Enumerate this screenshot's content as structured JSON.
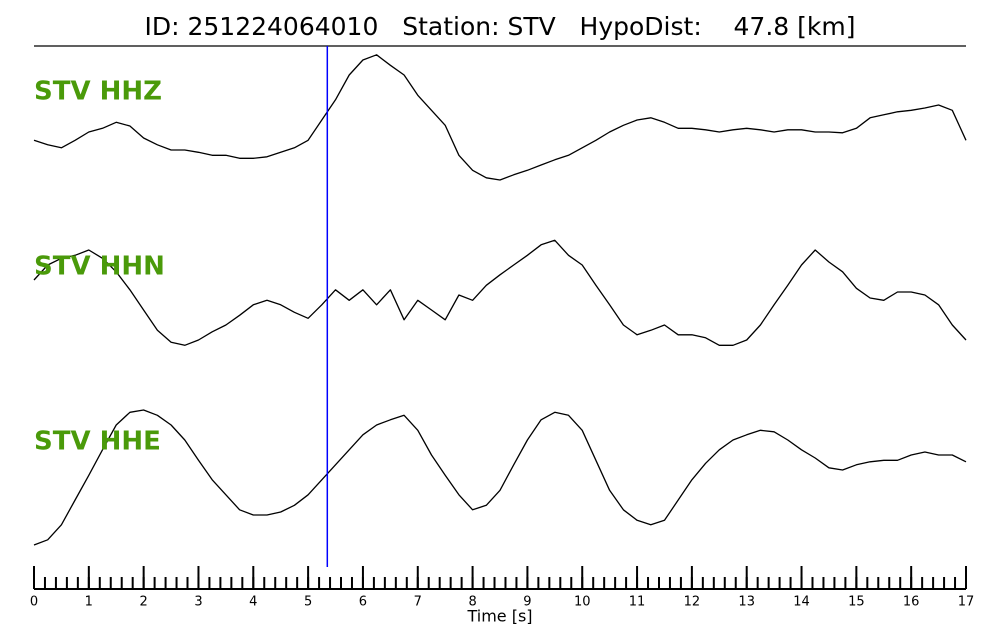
{
  "chart_data": {
    "type": "line",
    "title": "ID: 251224064010   Station: STV   HypoDist:    47.8 [km]",
    "xlabel": "Time [s]",
    "xlim": [
      0,
      17
    ],
    "xticks": [
      0,
      1,
      2,
      3,
      4,
      5,
      6,
      7,
      8,
      9,
      10,
      11,
      12,
      13,
      14,
      15,
      16,
      17
    ],
    "minor_xtick_step": 0.2,
    "ylim": [
      -1,
      1
    ],
    "label_color": "#4a9a0a",
    "vlines": [
      {
        "x": 5.35,
        "color": "#0000ff"
      }
    ],
    "x": [
      0,
      0.25,
      0.5,
      0.75,
      1,
      1.25,
      1.5,
      1.75,
      2,
      2.25,
      2.5,
      2.75,
      3,
      3.25,
      3.5,
      3.75,
      4,
      4.25,
      4.5,
      4.75,
      5,
      5.25,
      5.5,
      5.75,
      6,
      6.25,
      6.5,
      6.75,
      7,
      7.25,
      7.5,
      7.75,
      8,
      8.25,
      8.5,
      8.75,
      9,
      9.25,
      9.5,
      9.75,
      10,
      10.25,
      10.5,
      10.75,
      11,
      11.25,
      11.5,
      11.75,
      12,
      12.25,
      12.5,
      12.75,
      13,
      13.25,
      13.5,
      13.75,
      14,
      14.25,
      14.5,
      14.75,
      15,
      15.25,
      15.5,
      15.75,
      16,
      16.25,
      16.5,
      16.75,
      17
    ],
    "series": [
      {
        "name": "STV HHZ",
        "color": "#000000",
        "values": [
          -0.27,
          -0.33,
          -0.37,
          -0.27,
          -0.16,
          -0.11,
          -0.03,
          -0.08,
          -0.24,
          -0.33,
          -0.4,
          -0.4,
          -0.43,
          -0.47,
          -0.47,
          -0.51,
          -0.51,
          -0.49,
          -0.43,
          -0.37,
          -0.27,
          0,
          0.27,
          0.6,
          0.8,
          0.87,
          0.73,
          0.6,
          0.33,
          0.13,
          -0.07,
          -0.47,
          -0.67,
          -0.77,
          -0.8,
          -0.73,
          -0.67,
          -0.6,
          -0.53,
          -0.47,
          -0.37,
          -0.27,
          -0.16,
          -0.07,
          0,
          0.03,
          -0.03,
          -0.11,
          -0.11,
          -0.13,
          -0.16,
          -0.13,
          -0.11,
          -0.13,
          -0.16,
          -0.13,
          -0.13,
          -0.16,
          -0.16,
          -0.17,
          -0.11,
          0.03,
          0.07,
          0.11,
          0.13,
          0.16,
          0.2,
          0.13,
          -0.27
        ]
      },
      {
        "name": "STV HHN",
        "color": "#000000",
        "values": [
          0.2,
          0.4,
          0.49,
          0.53,
          0.6,
          0.49,
          0.31,
          0.07,
          -0.2,
          -0.47,
          -0.63,
          -0.67,
          -0.6,
          -0.49,
          -0.4,
          -0.27,
          -0.13,
          -0.07,
          -0.13,
          -0.23,
          -0.31,
          -0.13,
          0.07,
          -0.07,
          0.07,
          -0.13,
          0.07,
          -0.33,
          -0.07,
          -0.2,
          -0.33,
          0,
          -0.07,
          0.13,
          0.27,
          0.4,
          0.53,
          0.67,
          0.73,
          0.53,
          0.4,
          0.13,
          -0.13,
          -0.4,
          -0.53,
          -0.47,
          -0.4,
          -0.53,
          -0.53,
          -0.57,
          -0.67,
          -0.67,
          -0.6,
          -0.4,
          -0.13,
          0.13,
          0.4,
          0.6,
          0.44,
          0.31,
          0.09,
          -0.04,
          -0.07,
          0.04,
          0.04,
          0,
          -0.13,
          -0.4,
          -0.6
        ]
      },
      {
        "name": "STV HHE",
        "color": "#000000",
        "values": [
          -1,
          -0.93,
          -0.73,
          -0.4,
          -0.07,
          0.27,
          0.6,
          0.77,
          0.8,
          0.73,
          0.6,
          0.4,
          0.13,
          -0.13,
          -0.33,
          -0.53,
          -0.6,
          -0.6,
          -0.56,
          -0.47,
          -0.33,
          -0.13,
          0.07,
          0.27,
          0.47,
          0.6,
          0.67,
          0.73,
          0.53,
          0.2,
          -0.07,
          -0.33,
          -0.53,
          -0.47,
          -0.27,
          0.07,
          0.4,
          0.67,
          0.77,
          0.73,
          0.53,
          0.13,
          -0.27,
          -0.53,
          -0.67,
          -0.73,
          -0.67,
          -0.4,
          -0.13,
          0.09,
          0.27,
          0.4,
          0.47,
          0.53,
          0.51,
          0.4,
          0.27,
          0.16,
          0.03,
          0,
          0.07,
          0.11,
          0.13,
          0.13,
          0.2,
          0.24,
          0.2,
          0.2,
          0.11
        ]
      }
    ]
  }
}
